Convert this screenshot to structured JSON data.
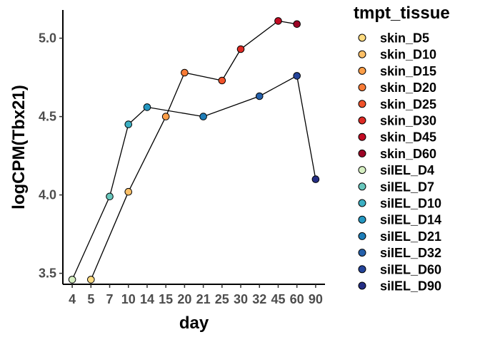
{
  "chart_data": {
    "type": "line",
    "xlabel": "day",
    "ylabel": "logCPM(Tbx21)",
    "categories": [
      "4",
      "5",
      "7",
      "10",
      "14",
      "15",
      "20",
      "21",
      "25",
      "30",
      "32",
      "45",
      "60",
      "90"
    ],
    "y_ticks": [
      3.5,
      4.0,
      4.5,
      5.0
    ],
    "y_tick_labels": [
      "3.5",
      "4.0",
      "4.5",
      "5.0"
    ],
    "ylim": [
      3.43,
      5.18
    ],
    "grid": false,
    "legend": {
      "title": "tmpt_tissue",
      "position": "right",
      "items": [
        {
          "label": "skin_D5",
          "color": "#fedb80"
        },
        {
          "label": "skin_D10",
          "color": "#fdc067"
        },
        {
          "label": "skin_D15",
          "color": "#fc9e48"
        },
        {
          "label": "skin_D20",
          "color": "#f87b36"
        },
        {
          "label": "skin_D25",
          "color": "#f0522a"
        },
        {
          "label": "skin_D30",
          "color": "#dd2a24"
        },
        {
          "label": "skin_D45",
          "color": "#c20b23"
        },
        {
          "label": "skin_D60",
          "color": "#9c0526"
        },
        {
          "label": "siIEL_D4",
          "color": "#d6efc2"
        },
        {
          "label": "siIEL_D7",
          "color": "#68c7bd"
        },
        {
          "label": "siIEL_D10",
          "color": "#3cb0c3"
        },
        {
          "label": "siIEL_D14",
          "color": "#2497c1"
        },
        {
          "label": "siIEL_D21",
          "color": "#1e7db8"
        },
        {
          "label": "siIEL_D32",
          "color": "#2460aa"
        },
        {
          "label": "siIEL_D60",
          "color": "#24449a"
        },
        {
          "label": "siIEL_D90",
          "color": "#252e84"
        }
      ]
    },
    "series": [
      {
        "tissue": "skin",
        "points": [
          {
            "x": "5",
            "y": 3.46,
            "group": "skin_D5",
            "color": "#fedb80"
          },
          {
            "x": "10",
            "y": 4.02,
            "group": "skin_D10",
            "color": "#fdc067"
          },
          {
            "x": "15",
            "y": 4.5,
            "group": "skin_D15",
            "color": "#fc9e48"
          },
          {
            "x": "20",
            "y": 4.78,
            "group": "skin_D20",
            "color": "#f87b36"
          },
          {
            "x": "25",
            "y": 4.73,
            "group": "skin_D25",
            "color": "#f0522a"
          },
          {
            "x": "30",
            "y": 4.93,
            "group": "skin_D30",
            "color": "#dd2a24"
          },
          {
            "x": "45",
            "y": 5.11,
            "group": "skin_D45",
            "color": "#c20b23"
          },
          {
            "x": "60",
            "y": 5.09,
            "group": "skin_D60",
            "color": "#9c0526"
          }
        ]
      },
      {
        "tissue": "siIEL",
        "points": [
          {
            "x": "4",
            "y": 3.46,
            "group": "siIEL_D4",
            "color": "#d6efc2"
          },
          {
            "x": "7",
            "y": 3.99,
            "group": "siIEL_D7",
            "color": "#68c7bd"
          },
          {
            "x": "10",
            "y": 4.45,
            "group": "siIEL_D10",
            "color": "#3cb0c3"
          },
          {
            "x": "14",
            "y": 4.56,
            "group": "siIEL_D14",
            "color": "#2497c1"
          },
          {
            "x": "21",
            "y": 4.5,
            "group": "siIEL_D21",
            "color": "#1e7db8"
          },
          {
            "x": "32",
            "y": 4.63,
            "group": "siIEL_D32",
            "color": "#2460aa"
          },
          {
            "x": "60",
            "y": 4.76,
            "group": "siIEL_D60",
            "color": "#24449a"
          },
          {
            "x": "90",
            "y": 4.1,
            "group": "siIEL_D90",
            "color": "#252e84"
          }
        ]
      }
    ]
  }
}
